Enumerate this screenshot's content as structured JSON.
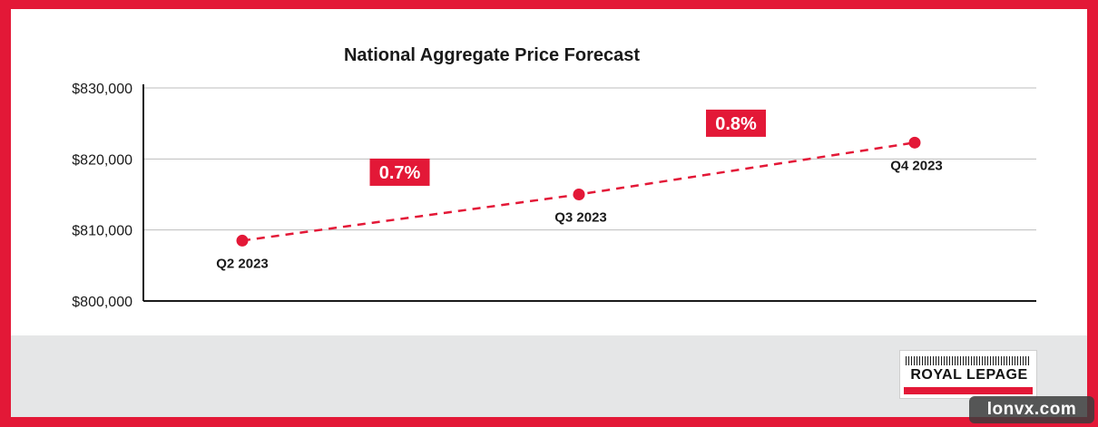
{
  "chart_data": {
    "type": "line",
    "title": "National Aggregate Price Forecast",
    "x": [
      "Q2 2023",
      "Q3 2023",
      "Q4 2023"
    ],
    "series": [
      {
        "values": [
          808500,
          815000,
          822300
        ]
      }
    ],
    "ylim": [
      800000,
      830000
    ],
    "yticks": [
      800000,
      810000,
      820000,
      830000
    ],
    "ytick_labels": [
      "$800,000",
      "$810,000",
      "$820,000",
      "$830,000"
    ],
    "annotations": [
      "0.7%",
      "0.8%"
    ],
    "grid": true,
    "line_style": "dashed",
    "colors": {
      "accent": "#e31837",
      "grid": "#bdbdbd",
      "axis": "#1a1a1a"
    }
  },
  "logo": {
    "text": "ROYAL LEPAGE"
  },
  "watermark": {
    "text": "lonvx.com"
  }
}
